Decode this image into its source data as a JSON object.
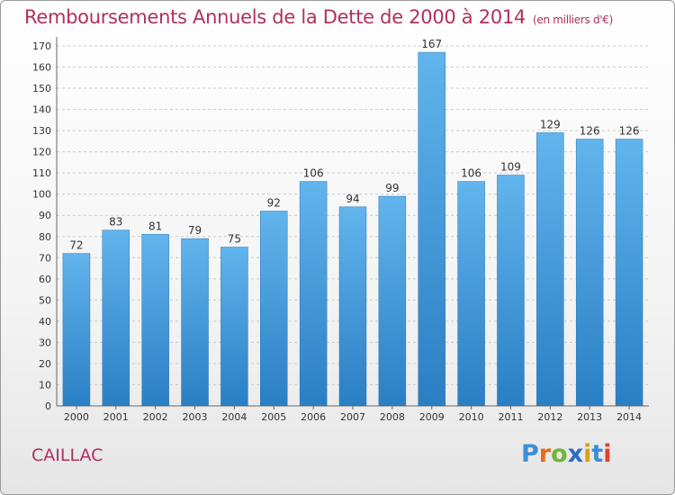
{
  "header": {
    "title": "Remboursements Annuels de la Dette de 2000 à 2014",
    "subtitle": "(en milliers d'€)"
  },
  "commune": "CAILLAC",
  "logo": {
    "text": "Proxiti",
    "letters": [
      "P",
      "r",
      "o",
      "x",
      "i",
      "t",
      "i"
    ],
    "letter_colors": [
      "#3a8fd8",
      "#e86a1a",
      "#6fb634",
      "#2b6cc4",
      "#d8a21b",
      "#3a8fd8",
      "#e2402a"
    ]
  },
  "colors": {
    "bar_top": "#62b4ec",
    "bar_bottom": "#2a7fc4",
    "title": "#b03060",
    "grid": "#cccccc",
    "axis_text": "#333333"
  },
  "chart_data": {
    "type": "bar",
    "categories": [
      "2000",
      "2001",
      "2002",
      "2003",
      "2004",
      "2005",
      "2006",
      "2007",
      "2008",
      "2009",
      "2010",
      "2011",
      "2012",
      "2013",
      "2014"
    ],
    "values": [
      72,
      83,
      81,
      79,
      75,
      92,
      106,
      94,
      99,
      167,
      106,
      109,
      129,
      126,
      126
    ],
    "data_labels": [
      "72",
      "83",
      "81",
      "79",
      "75",
      "92",
      "106",
      "94",
      "99",
      "167",
      "106",
      "109",
      "129",
      "126",
      "126"
    ],
    "y_ticks": [
      0,
      10,
      20,
      30,
      40,
      50,
      60,
      70,
      80,
      90,
      100,
      110,
      120,
      130,
      140,
      150,
      160,
      170
    ],
    "ylim": [
      0,
      170
    ],
    "title": "Remboursements Annuels de la Dette de 2000 à 2014",
    "xlabel": "",
    "ylabel": "",
    "grid": true,
    "legend": "none"
  }
}
